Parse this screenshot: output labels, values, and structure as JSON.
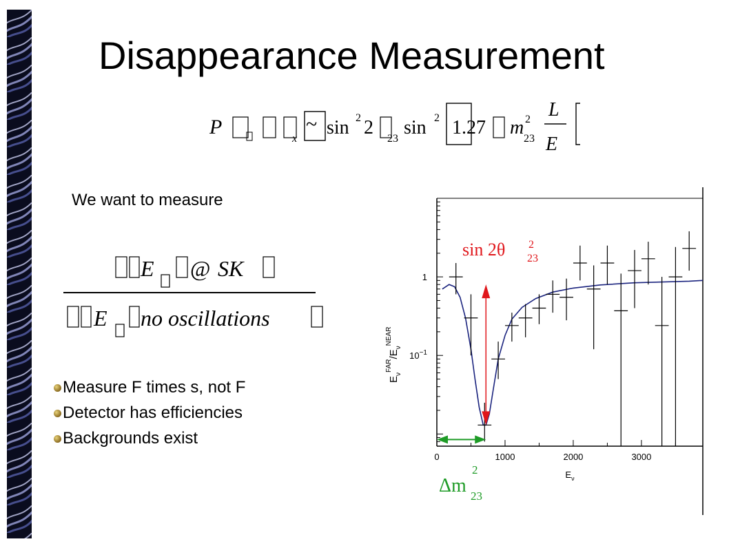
{
  "slide": {
    "title": "Disappearance Measurement",
    "intro": "We want to measure",
    "bullets": [
      "Measure F times s, not F",
      "Detector has efficiencies",
      "Backgrounds exist"
    ]
  },
  "formula": {
    "P": "P",
    "sub_x": "x",
    "tilde": "~",
    "sin1": "sin",
    "sq1": "2",
    "two": "2",
    "sub23a": "23",
    "sin2": "sin",
    "sq2": "2",
    "num": "1.27",
    "m": "m",
    "sq3": "2",
    "sub23b": "23",
    "L": "L",
    "E": "E"
  },
  "ratio": {
    "numerator": {
      "E": "E",
      "at": "@",
      "SK": "SK"
    },
    "denominator": {
      "E": "E",
      "text": "no oscillations"
    }
  },
  "chart_data": {
    "type": "line",
    "x_axis": {
      "label": "E",
      "label_sub": "ν",
      "ticks": [
        0,
        1000,
        2000,
        3000
      ],
      "range": [
        0,
        3900
      ]
    },
    "y_axis": {
      "label_parts": [
        "E",
        "ν",
        "FAR",
        "/E",
        "ν",
        "NEAR"
      ],
      "scale": "log",
      "ticks": [
        {
          "value": 1,
          "label": "1"
        },
        {
          "value": 0.1,
          "label": "10",
          "sup": "−1"
        }
      ],
      "range": [
        0.007,
        10
      ]
    },
    "series": [
      {
        "style": "curve",
        "color": "#1a237e",
        "points": [
          [
            80,
            0.7
          ],
          [
            180,
            0.8
          ],
          [
            260,
            0.75
          ],
          [
            340,
            0.55
          ],
          [
            420,
            0.3
          ],
          [
            500,
            0.12
          ],
          [
            560,
            0.05
          ],
          [
            620,
            0.022
          ],
          [
            680,
            0.013
          ],
          [
            720,
            0.013
          ],
          [
            770,
            0.018
          ],
          [
            830,
            0.038
          ],
          [
            900,
            0.09
          ],
          [
            1000,
            0.18
          ],
          [
            1100,
            0.29
          ],
          [
            1250,
            0.41
          ],
          [
            1450,
            0.53
          ],
          [
            1700,
            0.64
          ],
          [
            2000,
            0.72
          ],
          [
            2400,
            0.79
          ],
          [
            2900,
            0.84
          ],
          [
            3300,
            0.86
          ],
          [
            3700,
            0.88
          ],
          [
            3900,
            0.9
          ]
        ]
      },
      {
        "style": "errorbar",
        "color": "#000000",
        "points": [
          {
            "x": 280,
            "y": 1.0,
            "xerr": 100,
            "ylo": 0.6,
            "yhi": 1.5
          },
          {
            "x": 500,
            "y": 0.3,
            "xerr": 100,
            "ylo": 0.1,
            "yhi": 0.6
          },
          {
            "x": 700,
            "y": 0.013,
            "xerr": 100,
            "ylo": 0.008,
            "yhi": 0.025
          },
          {
            "x": 900,
            "y": 0.09,
            "xerr": 100,
            "ylo": 0.05,
            "yhi": 0.15
          },
          {
            "x": 1100,
            "y": 0.24,
            "xerr": 100,
            "ylo": 0.15,
            "yhi": 0.35
          },
          {
            "x": 1300,
            "y": 0.3,
            "xerr": 100,
            "ylo": 0.17,
            "yhi": 0.45
          },
          {
            "x": 1500,
            "y": 0.4,
            "xerr": 100,
            "ylo": 0.25,
            "yhi": 0.6
          },
          {
            "x": 1700,
            "y": 0.6,
            "xerr": 100,
            "ylo": 0.35,
            "yhi": 0.9
          },
          {
            "x": 1900,
            "y": 0.55,
            "xerr": 100,
            "ylo": 0.28,
            "yhi": 0.95
          },
          {
            "x": 2100,
            "y": 1.5,
            "xerr": 100,
            "ylo": 0.9,
            "yhi": 2.5
          },
          {
            "x": 2300,
            "y": 0.7,
            "xerr": 100,
            "ylo": 0.12,
            "yhi": 1.4
          },
          {
            "x": 2500,
            "y": 1.5,
            "xerr": 100,
            "ylo": 0.8,
            "yhi": 2.5
          },
          {
            "x": 2700,
            "y": 0.37,
            "xerr": 100,
            "ylo": 0.007,
            "yhi": 1.1
          },
          {
            "x": 2900,
            "y": 1.2,
            "xerr": 100,
            "ylo": 0.4,
            "yhi": 2.2
          },
          {
            "x": 3100,
            "y": 1.7,
            "xerr": 100,
            "ylo": 0.8,
            "yhi": 2.8
          },
          {
            "x": 3300,
            "y": 0.24,
            "xerr": 100,
            "ylo": 0.007,
            "yhi": 1.0
          },
          {
            "x": 3500,
            "y": 1.0,
            "xerr": 100,
            "ylo": 0.007,
            "yhi": 2.4
          },
          {
            "x": 3700,
            "y": 2.3,
            "xerr": 100,
            "ylo": 1.2,
            "yhi": 3.8
          }
        ]
      }
    ],
    "annotations": [
      {
        "text": "sin 2θ",
        "sup": "2",
        "sub": "23",
        "color": "#e0161b",
        "kind": "amplitude-arrow",
        "x": 720,
        "y_from": 0.013,
        "y_to": 0.8
      },
      {
        "text": "Δm",
        "sup": "2",
        "sub": "23",
        "color": "#1e9b26",
        "kind": "position-arrow",
        "x_from": 0,
        "x_to": 720,
        "y": 0.0085
      }
    ]
  }
}
